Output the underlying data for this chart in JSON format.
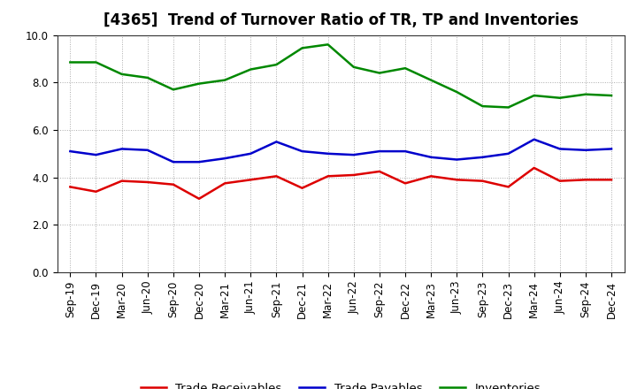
{
  "title": "[4365]  Trend of Turnover Ratio of TR, TP and Inventories",
  "x_labels": [
    "Sep-19",
    "Dec-19",
    "Mar-20",
    "Jun-20",
    "Sep-20",
    "Dec-20",
    "Mar-21",
    "Jun-21",
    "Sep-21",
    "Dec-21",
    "Mar-22",
    "Jun-22",
    "Sep-22",
    "Dec-22",
    "Mar-23",
    "Jun-23",
    "Sep-23",
    "Dec-23",
    "Mar-24",
    "Jun-24",
    "Sep-24",
    "Dec-24"
  ],
  "trade_receivables": [
    3.6,
    3.4,
    3.85,
    3.8,
    3.7,
    3.1,
    3.75,
    3.9,
    4.05,
    3.55,
    4.05,
    4.1,
    4.25,
    3.75,
    4.05,
    3.9,
    3.85,
    3.6,
    4.4,
    3.85,
    3.9,
    3.9
  ],
  "trade_payables": [
    5.1,
    4.95,
    5.2,
    5.15,
    4.65,
    4.65,
    4.8,
    5.0,
    5.5,
    5.1,
    5.0,
    4.95,
    5.1,
    5.1,
    4.85,
    4.75,
    4.85,
    5.0,
    5.6,
    5.2,
    5.15,
    5.2
  ],
  "inventories": [
    8.85,
    8.85,
    8.35,
    8.2,
    7.7,
    7.95,
    8.1,
    8.55,
    8.75,
    9.45,
    9.6,
    8.65,
    8.4,
    8.6,
    8.1,
    7.6,
    7.0,
    6.95,
    7.45,
    7.35,
    7.5,
    7.45
  ],
  "ylim": [
    0.0,
    10.0
  ],
  "yticks": [
    0.0,
    2.0,
    4.0,
    6.0,
    8.0,
    10.0
  ],
  "line_colors": {
    "trade_receivables": "#dd0000",
    "trade_payables": "#0000cc",
    "inventories": "#008800"
  },
  "legend_labels": [
    "Trade Receivables",
    "Trade Payables",
    "Inventories"
  ],
  "background_color": "#ffffff",
  "grid_color": "#aaaaaa",
  "title_fontsize": 12,
  "axis_fontsize": 8.5,
  "legend_fontsize": 9.5,
  "line_width": 1.8
}
